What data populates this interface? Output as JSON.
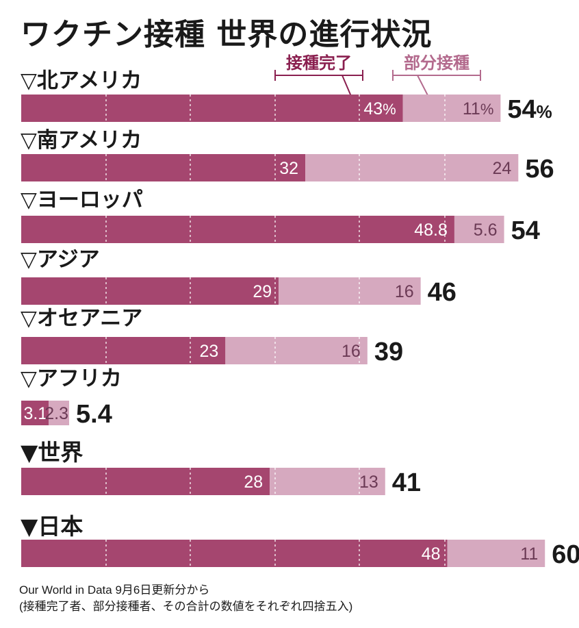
{
  "title": "ワクチン接種 世界の進行状況",
  "legend": {
    "complete": "接種完了",
    "partial": "部分接種"
  },
  "source": {
    "line1": "Our World in Data 9月6日更新分から",
    "line2": "(接種完了者、部分接種者、その合計の数値をそれぞれ四捨五入)"
  },
  "colors": {
    "complete": "#a5466f",
    "partial": "#d6a9bf",
    "legend_complete": "#8a1f4f",
    "legend_partial": "#b36a8d"
  },
  "percent_unit": "%",
  "chart_data": {
    "type": "bar",
    "orientation": "horizontal",
    "stacked": true,
    "unit": "%",
    "xlim": [
      0,
      65
    ],
    "categories": [
      "▽北アメリカ",
      "▽南アメリカ",
      "▽ヨーロッパ",
      "▽アジア",
      "▽オセアニア",
      "▽アフリカ",
      "▼世界",
      "▼日本"
    ],
    "series": [
      {
        "name": "接種完了",
        "values": [
          43,
          32,
          48.8,
          29,
          23,
          3.1,
          28,
          48
        ]
      },
      {
        "name": "部分接種",
        "values": [
          11,
          24,
          5.6,
          16,
          16,
          2.3,
          13,
          11
        ]
      }
    ],
    "labels_complete": [
      "43",
      "32",
      "48.8",
      "29",
      "23",
      "3.1",
      "28",
      "48"
    ],
    "labels_partial": [
      "11",
      "24",
      "5.6",
      "16",
      "16",
      "2.3",
      "13",
      "11"
    ],
    "totals": [
      "54",
      "56",
      "54",
      "46",
      "39",
      "5.4",
      "41",
      "60"
    ],
    "grid": true
  }
}
